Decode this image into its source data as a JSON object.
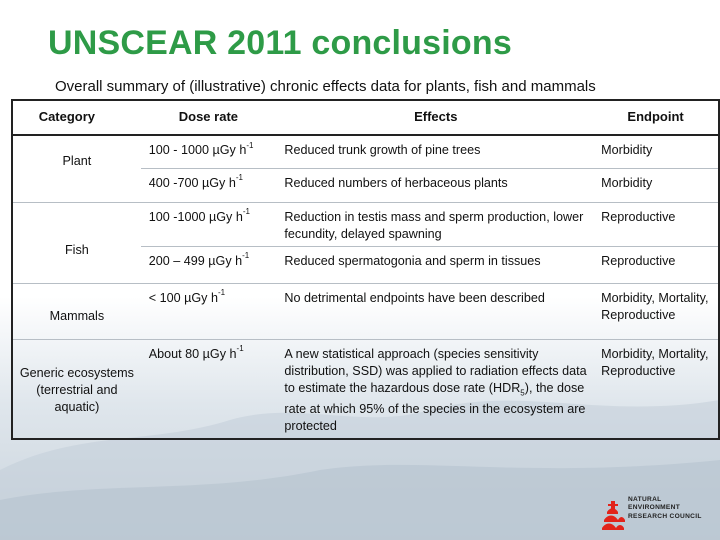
{
  "title": "UNSCEAR 2011 conclusions",
  "subtitle": "Overall summary of (illustrative) chronic effects data for plants, fish and mammals",
  "table": {
    "headers": {
      "category": "Category",
      "dose_rate": "Dose rate",
      "effects": "Effects",
      "endpoint": "Endpoint"
    },
    "categories": {
      "plant": "Plant",
      "fish": "Fish",
      "mammals": "Mammals",
      "generic": "Generic ecosystems (terrestrial and aquatic)"
    },
    "rows": [
      {
        "dose": "100 - 1000 µGy h",
        "dose_sup": "-1",
        "effect": "Reduced trunk growth of pine trees",
        "endpoint": "Morbidity"
      },
      {
        "dose": "400 -700 µGy h",
        "dose_sup": "-1",
        "effect": "Reduced numbers of herbaceous plants",
        "endpoint": "Morbidity"
      },
      {
        "dose": "100 -1000 µGy h",
        "dose_sup": "-1",
        "effect": "Reduction in testis mass and sperm production, lower fecundity, delayed spawning",
        "endpoint": "Reproductive"
      },
      {
        "dose": "200 – 499 µGy h",
        "dose_sup": "-1",
        "effect": "Reduced spermatogonia and sperm in tissues",
        "endpoint": "Reproductive"
      },
      {
        "dose": "< 100 µGy h",
        "dose_sup": "-1",
        "effect": "No detrimental endpoints have been described",
        "endpoint": "Morbidity, Mortality, Reproductive"
      },
      {
        "dose": "About 80 µGy h",
        "dose_sup": "-1",
        "effect_pre": "A new statistical approach (species sensitivity distribution, SSD) was applied to radiation effects data to estimate the hazardous dose rate (HDR",
        "effect_sub": "5",
        "effect_post": "), the dose rate at which 95% of the species in the ecosystem are protected",
        "endpoint": "Morbidity, Mortality, Reproductive"
      }
    ]
  },
  "logo": {
    "line1": "NATURAL",
    "line2": "ENVIRONMENT",
    "line3": "RESEARCH COUNCIL",
    "color": "#e2231a"
  }
}
